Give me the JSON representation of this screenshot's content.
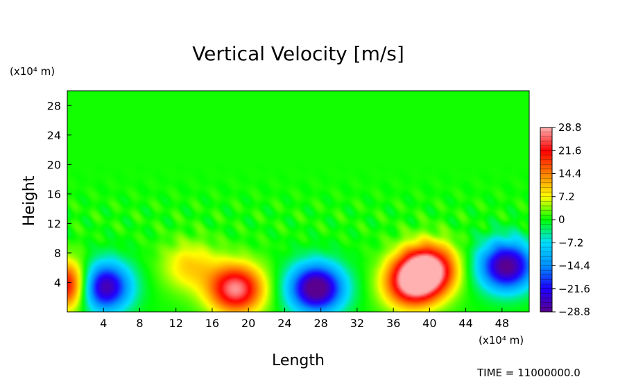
{
  "chart_data": {
    "type": "heatmap",
    "title": "Vertical Velocity [m/s]",
    "xlabel": "Length",
    "ylabel": "Height",
    "x_unit": "(x10⁴ m)",
    "y_unit": "(x10⁴ m)",
    "xlim": [
      0,
      51
    ],
    "ylim": [
      0,
      30
    ],
    "x_ticks": [
      4,
      8,
      12,
      16,
      20,
      24,
      28,
      32,
      36,
      40,
      44,
      48
    ],
    "y_ticks": [
      4,
      8,
      12,
      16,
      20,
      24,
      28
    ],
    "colorbar": {
      "range": [
        -28.8,
        28.8
      ],
      "tick_values": [
        28.8,
        21.6,
        14.4,
        7.2,
        0,
        -7.2,
        -14.4,
        -21.6,
        -28.8
      ],
      "tick_labels": [
        "28.8",
        "21.6",
        "14.4",
        "7.2",
        "0",
        "−7.2",
        "−14.4",
        "−21.6",
        "−28.8"
      ],
      "colors": [
        "#5a0090",
        "#2000ff",
        "#0090ff",
        "#00e0ff",
        "#00ff00",
        "#ffff00",
        "#ff8000",
        "#ff0000",
        "#ffb0b0"
      ]
    },
    "background_value": 0.5,
    "features": [
      {
        "label": "downdraft",
        "x": 3.8,
        "y": 3.4,
        "value": -32
      },
      {
        "label": "downdraft",
        "x": 27.5,
        "y": 3.2,
        "value": -32
      },
      {
        "label": "downdraft",
        "x": 48.5,
        "y": 6.2,
        "value": -30
      },
      {
        "label": "updraft",
        "x": 0.2,
        "y": 3.6,
        "value": 27
      },
      {
        "label": "updraft",
        "x": 18.6,
        "y": 3.1,
        "value": 27
      },
      {
        "label": "updraft",
        "x": 13.5,
        "y": 6.2,
        "value": 9
      },
      {
        "label": "updraft",
        "x": 39.8,
        "y": 5.8,
        "value": 30
      },
      {
        "label": "updraft",
        "x": 38.0,
        "y": 3.8,
        "value": 24
      }
    ],
    "time_label": "TIME = 11000000.0"
  }
}
